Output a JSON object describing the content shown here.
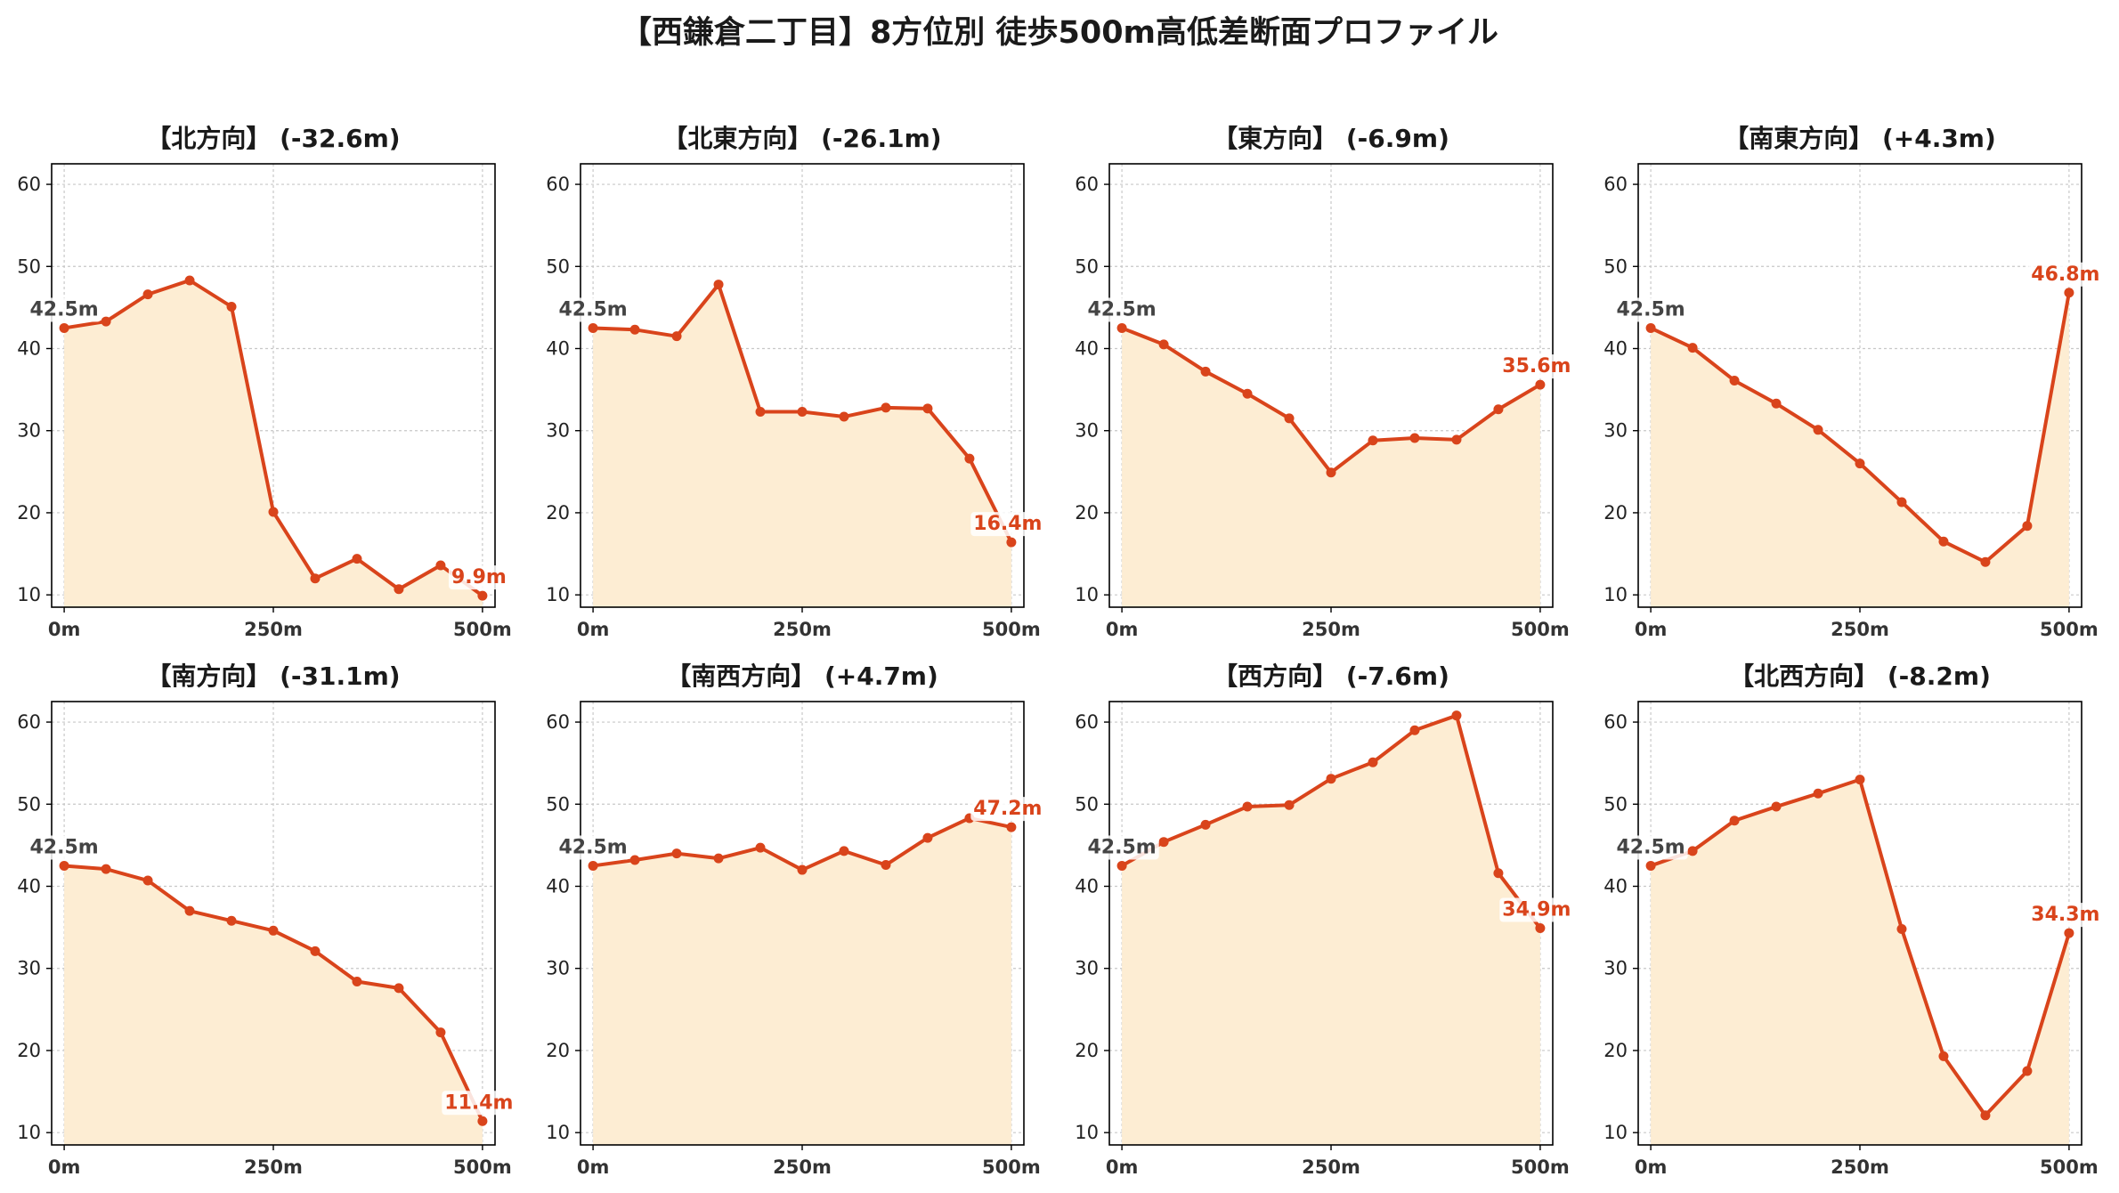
{
  "title": "【西鎌倉二丁目】8方位別 徒歩500m高低差断面プロファイル",
  "colors": {
    "line": "#d9441b",
    "fill": "#fdedd3",
    "start_label": "#444444",
    "end_label": "#d9441b",
    "grid": "#c8c8c8"
  },
  "chart_data": {
    "type": "area",
    "grid": true,
    "shared_axes": {
      "x": [
        0,
        50,
        100,
        150,
        200,
        250,
        300,
        350,
        400,
        450,
        500
      ],
      "xticks": [
        0,
        250,
        500
      ],
      "xtick_labels": [
        "0m",
        "250m",
        "500m"
      ],
      "ylim": [
        8.5,
        62.5
      ],
      "yticks": [
        10,
        20,
        30,
        40,
        50,
        60
      ],
      "ytick_labels": [
        "10",
        "20",
        "30",
        "40",
        "50",
        "60"
      ]
    },
    "panels": [
      {
        "title": "【北方向】 (-32.6m)",
        "values": [
          42.5,
          43.3,
          46.6,
          48.3,
          45.1,
          20.1,
          12.0,
          14.4,
          10.7,
          13.6,
          9.9
        ],
        "start_label": "42.5m",
        "end_label": "9.9m"
      },
      {
        "title": "【北東方向】 (-26.1m)",
        "values": [
          42.5,
          42.3,
          41.5,
          47.8,
          32.3,
          32.3,
          31.7,
          32.8,
          32.7,
          26.6,
          16.4
        ],
        "start_label": "42.5m",
        "end_label": "16.4m"
      },
      {
        "title": "【東方向】 (-6.9m)",
        "values": [
          42.5,
          40.5,
          37.2,
          34.5,
          31.5,
          24.9,
          28.8,
          29.1,
          28.9,
          32.6,
          35.6
        ],
        "start_label": "42.5m",
        "end_label": "35.6m"
      },
      {
        "title": "【南東方向】 (+4.3m)",
        "values": [
          42.5,
          40.1,
          36.1,
          33.3,
          30.1,
          26.0,
          21.3,
          16.5,
          14.0,
          18.4,
          46.8
        ],
        "start_label": "42.5m",
        "end_label": "46.8m"
      },
      {
        "title": "【南方向】 (-31.1m)",
        "values": [
          42.5,
          42.1,
          40.7,
          37.0,
          35.8,
          34.6,
          32.1,
          28.4,
          27.6,
          22.2,
          11.4
        ],
        "start_label": "42.5m",
        "end_label": "11.4m"
      },
      {
        "title": "【南西方向】 (+4.7m)",
        "values": [
          42.5,
          43.2,
          44.0,
          43.4,
          44.7,
          42.0,
          44.3,
          42.6,
          45.9,
          48.3,
          47.2
        ],
        "start_label": "42.5m",
        "end_label": "47.2m"
      },
      {
        "title": "【西方向】 (-7.6m)",
        "values": [
          42.5,
          45.4,
          47.5,
          49.7,
          49.9,
          53.1,
          55.1,
          59.0,
          60.8,
          41.6,
          34.9
        ],
        "start_label": "42.5m",
        "end_label": "34.9m"
      },
      {
        "title": "【北西方向】 (-8.2m)",
        "values": [
          42.5,
          44.3,
          48.0,
          49.7,
          51.3,
          53.0,
          34.8,
          19.3,
          12.1,
          17.5,
          34.3
        ],
        "start_label": "42.5m",
        "end_label": "34.3m"
      }
    ]
  }
}
